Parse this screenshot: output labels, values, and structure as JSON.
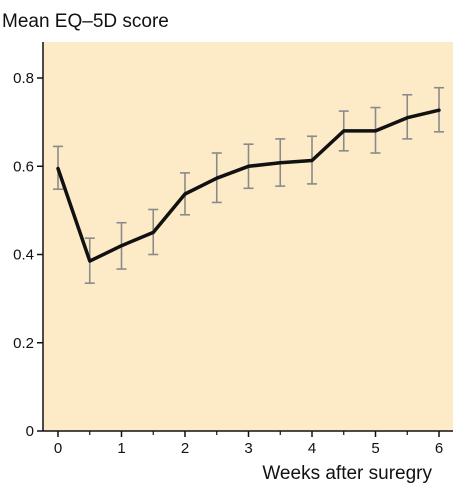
{
  "chart_data": {
    "type": "line",
    "title": "Mean EQ–5D score",
    "xlabel": "Weeks after suregry",
    "ylabel": "",
    "xlim": [
      0,
      6
    ],
    "ylim": [
      0,
      0.8
    ],
    "x_ticks": [
      0,
      1,
      2,
      3,
      4,
      5,
      6
    ],
    "x_tick_labels": [
      "0",
      "1",
      "2",
      "3",
      "4",
      "5",
      "6"
    ],
    "y_ticks": [
      0,
      0.2,
      0.4,
      0.6,
      0.8
    ],
    "y_tick_labels": [
      "0",
      "0.2",
      "0.4",
      "0.6",
      "0.8"
    ],
    "grid": false,
    "background_color": "#fdebc8",
    "line_color": "#111111",
    "errorbar_color": "#8a8a8a",
    "series": [
      {
        "x": [
          0,
          0.5,
          1,
          1.5,
          2,
          2.5,
          3,
          3.5,
          4,
          4.5,
          5,
          5.5,
          6
        ],
        "y": [
          0.595,
          0.385,
          0.42,
          0.45,
          0.537,
          0.573,
          0.6,
          0.608,
          0.613,
          0.68,
          0.68,
          0.71,
          0.727
        ],
        "y_err_low": [
          0.548,
          0.335,
          0.367,
          0.4,
          0.49,
          0.518,
          0.55,
          0.555,
          0.56,
          0.635,
          0.63,
          0.662,
          0.678
        ],
        "y_err_high": [
          0.645,
          0.437,
          0.472,
          0.502,
          0.585,
          0.63,
          0.65,
          0.662,
          0.668,
          0.725,
          0.733,
          0.762,
          0.778
        ]
      }
    ]
  }
}
